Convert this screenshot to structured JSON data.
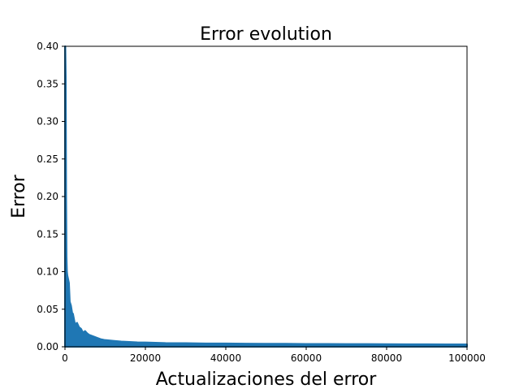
{
  "chart_data": {
    "type": "area",
    "title": "Error evolution",
    "xlabel": "Actualizaciones del error",
    "ylabel": "Error",
    "xlim": [
      0,
      100000
    ],
    "ylim": [
      0,
      0.4
    ],
    "xticks": [
      0,
      20000,
      40000,
      60000,
      80000,
      100000
    ],
    "xtick_labels": [
      "0",
      "20000",
      "40000",
      "60000",
      "80000",
      "100000"
    ],
    "yticks": [
      0,
      0.05,
      0.1,
      0.15,
      0.2,
      0.25,
      0.3,
      0.35,
      0.4
    ],
    "ytick_labels": [
      "0.00",
      "0.05",
      "0.10",
      "0.15",
      "0.20",
      "0.25",
      "0.30",
      "0.35",
      "0.40"
    ],
    "grid": false,
    "legend": "none",
    "series": [
      {
        "color": "#1f77b4",
        "x": [
          0,
          100,
          200,
          300,
          400,
          500,
          600,
          800,
          1000,
          1200,
          1500,
          1800,
          2000,
          2500,
          3000,
          3500,
          4000,
          4500,
          5000,
          5500,
          6000,
          7000,
          8000,
          9000,
          10000,
          12000,
          14000,
          16000,
          18000,
          20000,
          25000,
          30000,
          35000,
          40000,
          45000,
          50000,
          55000,
          60000,
          65000,
          70000,
          75000,
          80000,
          85000,
          90000,
          95000,
          100000
        ],
        "y": [
          0.4,
          0.4,
          0.36,
          0.2,
          0.12,
          0.1,
          0.095,
          0.09,
          0.085,
          0.06,
          0.055,
          0.045,
          0.044,
          0.03,
          0.032,
          0.026,
          0.024,
          0.019,
          0.021,
          0.018,
          0.016,
          0.014,
          0.012,
          0.01,
          0.009,
          0.008,
          0.007,
          0.0065,
          0.006,
          0.0058,
          0.005,
          0.0048,
          0.0045,
          0.0045,
          0.0042,
          0.004,
          0.004,
          0.0038,
          0.0038,
          0.0036,
          0.0036,
          0.0035,
          0.0034,
          0.0034,
          0.0033,
          0.0033
        ]
      }
    ]
  }
}
